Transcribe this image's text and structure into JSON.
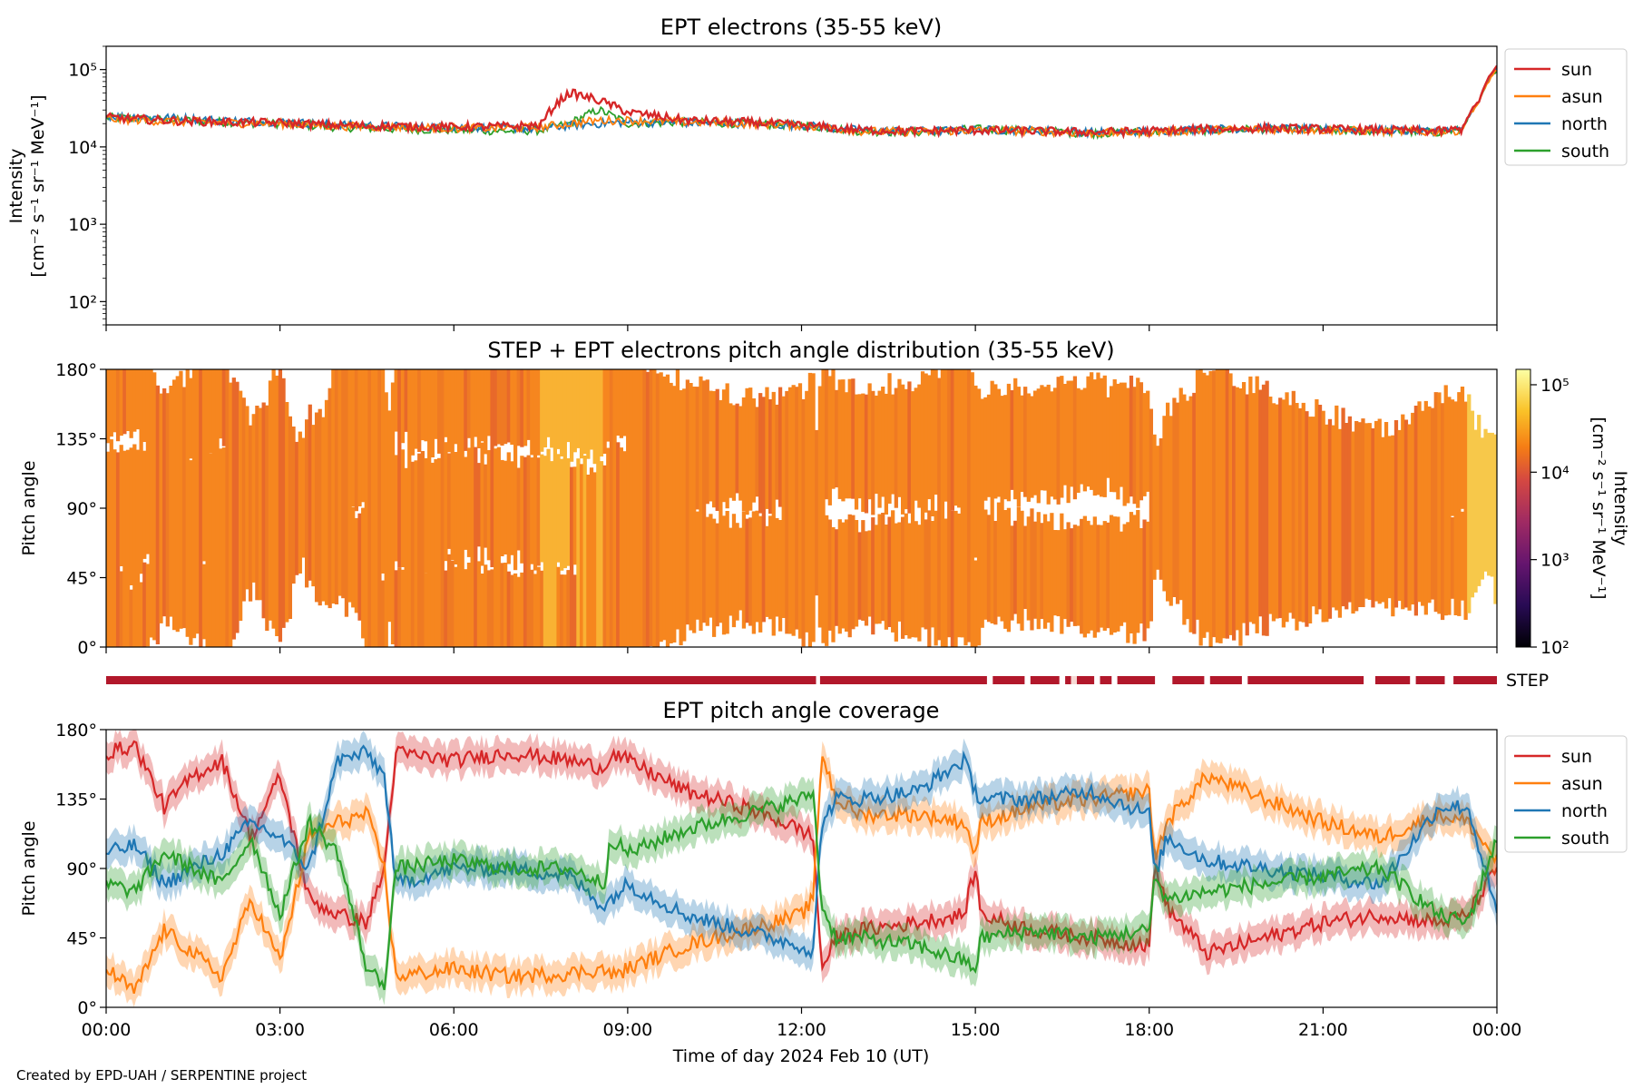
{
  "figure_credit": "Created by EPD-UAH / SERPENTINE project",
  "colors": {
    "sun": "#d62728",
    "asun": "#ff7f0e",
    "north": "#1f77b4",
    "south": "#2ca02c",
    "step_bar": "#b2182b",
    "orange_fill": "#f6861f"
  },
  "chart_data": [
    {
      "type": "line",
      "title": "EPT electrons (35-55 keV)",
      "ylabel": [
        "Intensity",
        "[cm⁻² s⁻¹ sr⁻¹ MeV⁻¹]"
      ],
      "yscale": "log",
      "ylim": [
        50,
        200000
      ],
      "yticks": [
        100,
        1000,
        10000,
        100000
      ],
      "ytick_labels": [
        "10²",
        "10³",
        "10⁴",
        "10⁵"
      ],
      "xlim": [
        "00:00",
        "24:00"
      ],
      "x_hours": [
        0,
        1,
        2,
        3,
        4,
        5,
        6,
        7,
        7.5,
        8,
        8.5,
        9,
        10,
        11,
        12,
        13,
        14,
        15,
        16,
        17,
        18,
        19,
        20,
        21,
        22,
        23,
        23.4,
        23.7,
        24
      ],
      "series": [
        {
          "name": "sun",
          "values": [
            24000,
            22000,
            21000,
            20500,
            19000,
            18500,
            18000,
            18500,
            19000,
            50000,
            40000,
            28000,
            22000,
            21000,
            19000,
            16500,
            16000,
            16500,
            16000,
            15500,
            16000,
            17000,
            17500,
            17000,
            16500,
            16000,
            17000,
            40000,
            110000
          ]
        },
        {
          "name": "asun",
          "values": [
            23000,
            21500,
            20500,
            20000,
            18500,
            18000,
            17500,
            17500,
            18000,
            20000,
            22000,
            22000,
            21000,
            20000,
            19000,
            16000,
            15500,
            16500,
            16000,
            15000,
            15500,
            16500,
            17000,
            16500,
            16000,
            15500,
            16500,
            38000,
            100000
          ]
        },
        {
          "name": "north",
          "values": [
            25000,
            24000,
            22000,
            21000,
            19500,
            18500,
            18000,
            17500,
            17000,
            19000,
            20000,
            21000,
            20500,
            20000,
            19000,
            16500,
            16000,
            16500,
            16500,
            15500,
            16000,
            17000,
            17500,
            17000,
            16500,
            16000,
            16500,
            39000,
            105000
          ]
        },
        {
          "name": "south",
          "values": [
            24000,
            22500,
            21000,
            20000,
            18000,
            17000,
            16500,
            16000,
            16500,
            20000,
            30000,
            20000,
            21000,
            20000,
            19000,
            16000,
            15500,
            17000,
            16000,
            15000,
            15500,
            16500,
            17000,
            16500,
            16000,
            15500,
            16500,
            38000,
            100000
          ]
        }
      ],
      "legend": [
        "sun",
        "asun",
        "north",
        "south"
      ],
      "legend_placement": "outside-right"
    },
    {
      "type": "heatmap",
      "title": "STEP + EPT electrons pitch angle distribution (35-55 keV)",
      "ylabel": "Pitch angle",
      "ylim": [
        0,
        180
      ],
      "yticks": [
        0,
        45,
        90,
        135,
        180
      ],
      "ytick_labels": [
        "0°",
        "45°",
        "90°",
        "135°",
        "180°"
      ],
      "colorbar": {
        "label": [
          "Intensity",
          "[cm⁻² s⁻¹ sr⁻¹ MeV⁻¹]"
        ],
        "scale": "log",
        "range": [
          100,
          150000
        ],
        "ticks": [
          100,
          1000,
          10000,
          100000
        ],
        "tick_labels": [
          "10²",
          "10³",
          "10⁴",
          "10⁵"
        ],
        "colormap": "inferno"
      },
      "typical_intensity": 18000,
      "coverage_note": "white gaps where no sensor coverage"
    },
    {
      "type": "bar",
      "label": "STEP",
      "segments_hours": [
        [
          0,
          12.25
        ],
        [
          12.32,
          15.2
        ],
        [
          15.3,
          15.85
        ],
        [
          15.95,
          16.45
        ],
        [
          16.55,
          16.65
        ],
        [
          16.75,
          17.05
        ],
        [
          17.15,
          17.35
        ],
        [
          17.45,
          18.1
        ],
        [
          18.4,
          18.95
        ],
        [
          19.05,
          19.6
        ],
        [
          19.7,
          21.7
        ],
        [
          21.9,
          22.5
        ],
        [
          22.6,
          23.1
        ],
        [
          23.25,
          24
        ]
      ],
      "faint_segment_hours": [
        16.65,
        16.75
      ]
    },
    {
      "type": "line",
      "title": "EPT pitch angle coverage",
      "ylabel": "Pitch angle",
      "xlabel": "Time of day 2024 Feb 10 (UT)",
      "ylim": [
        0,
        180
      ],
      "yticks": [
        0,
        45,
        90,
        135,
        180
      ],
      "ytick_labels": [
        "0°",
        "45°",
        "90°",
        "135°",
        "180°"
      ],
      "xticks_hours": [
        0,
        3,
        6,
        9,
        12,
        15,
        18,
        21,
        24
      ],
      "xtick_labels": [
        "00:00",
        "03:00",
        "06:00",
        "09:00",
        "12:00",
        "15:00",
        "18:00",
        "21:00",
        "00:00"
      ],
      "x_hours": [
        0,
        0.5,
        1,
        1.5,
        2,
        2.5,
        3,
        3.5,
        4,
        4.5,
        4.8,
        5,
        6,
        7,
        8,
        8.6,
        8.7,
        9,
        10,
        11,
        12,
        12.2,
        12.35,
        12.6,
        13,
        14,
        14.8,
        15,
        15.1,
        16,
        17,
        18,
        18.1,
        18.3,
        19,
        20,
        21,
        22,
        23,
        23.5,
        24
      ],
      "series": [
        {
          "name": "sun",
          "values": [
            165,
            170,
            130,
            150,
            160,
            110,
            150,
            70,
            60,
            55,
            90,
            165,
            160,
            165,
            160,
            155,
            165,
            160,
            140,
            130,
            115,
            110,
            25,
            45,
            50,
            55,
            60,
            90,
            60,
            50,
            45,
            40,
            95,
            65,
            35,
            45,
            55,
            60,
            55,
            60,
            90
          ]
        },
        {
          "name": "asun",
          "values": [
            25,
            10,
            50,
            35,
            20,
            70,
            30,
            110,
            120,
            125,
            90,
            20,
            25,
            20,
            22,
            25,
            20,
            25,
            40,
            50,
            60,
            70,
            165,
            135,
            125,
            125,
            120,
            100,
            120,
            130,
            135,
            140,
            95,
            120,
            150,
            135,
            120,
            110,
            125,
            120,
            95
          ]
        },
        {
          "name": "north",
          "values": [
            100,
            105,
            80,
            90,
            100,
            120,
            110,
            90,
            160,
            165,
            150,
            80,
            90,
            90,
            85,
            65,
            70,
            80,
            60,
            50,
            40,
            35,
            120,
            135,
            135,
            140,
            160,
            140,
            135,
            135,
            140,
            125,
            85,
            110,
            95,
            90,
            85,
            80,
            130,
            130,
            60
          ]
        },
        {
          "name": "south",
          "values": [
            80,
            75,
            100,
            90,
            80,
            110,
            60,
            120,
            100,
            25,
            15,
            90,
            95,
            90,
            90,
            80,
            110,
            100,
            115,
            125,
            135,
            140,
            65,
            45,
            45,
            40,
            30,
            25,
            45,
            50,
            45,
            50,
            85,
            70,
            75,
            80,
            85,
            90,
            60,
            55,
            110
          ]
        }
      ],
      "band_halfwidth_deg": 10,
      "legend": [
        "sun",
        "asun",
        "north",
        "south"
      ],
      "legend_placement": "outside-right"
    }
  ]
}
